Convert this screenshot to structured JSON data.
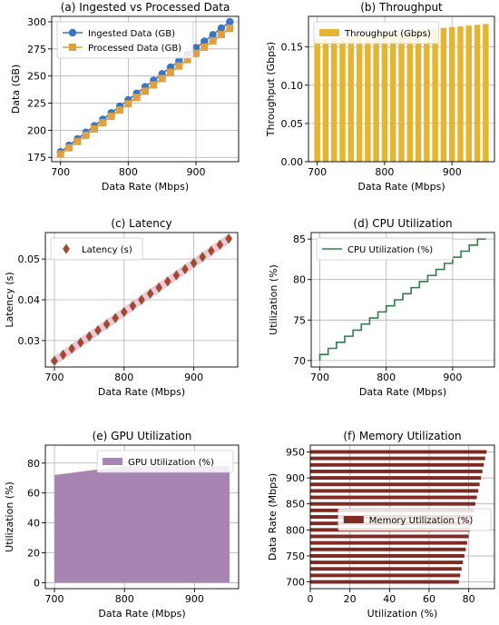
{
  "colors": {
    "ingested": "#3a75c4",
    "processed": "#e0a040",
    "throughput": "#e5b532",
    "latency_marker": "#c0392b",
    "latency_band": "#f4b6d2",
    "cpu_line": "#2e7d46",
    "gpu_fill": "#a884b3",
    "memory_bar": "#7f2a22"
  },
  "chart_data": [
    {
      "id": "a",
      "type": "line",
      "title": "(a) Ingested vs Processed Data",
      "xlabel": "Data Rate (Mbps)",
      "ylabel": "Data (GB)",
      "xlim": [
        687,
        963
      ],
      "ylim": [
        171,
        305
      ],
      "xticks": [
        700,
        800,
        900
      ],
      "yticks": [
        175,
        200,
        225,
        250,
        275,
        300
      ],
      "grid": true,
      "legend": "upper left",
      "x": [
        700,
        712.5,
        725,
        737.5,
        750,
        762.5,
        775,
        787.5,
        800,
        812.5,
        825,
        837.5,
        850,
        862.5,
        875,
        887.5,
        900,
        912.5,
        925,
        937.5,
        950
      ],
      "series": [
        {
          "name": "Ingested Data (GB)",
          "marker": "circle",
          "color_key": "ingested",
          "values": [
            180,
            186,
            192,
            198,
            204,
            210,
            216,
            222,
            228,
            234,
            240,
            246,
            252,
            258,
            264,
            270,
            276,
            282,
            288,
            294,
            300
          ]
        },
        {
          "name": "Processed Data (GB)",
          "marker": "square",
          "color_key": "processed",
          "values": [
            178,
            183.8,
            189.6,
            195.4,
            201.2,
            207,
            212.8,
            218.6,
            224.4,
            230.2,
            236,
            241.8,
            247.6,
            253.4,
            259.2,
            265,
            270.8,
            276.6,
            282.4,
            288.2,
            294
          ]
        }
      ]
    },
    {
      "id": "b",
      "type": "bar",
      "title": "(b) Throughput",
      "xlabel": "Data Rate (Mbps)",
      "ylabel": "Throughput (Gbps)",
      "xlim": [
        687,
        963
      ],
      "ylim": [
        0,
        0.19
      ],
      "xticks": [
        700,
        800,
        900
      ],
      "yticks": [
        0.0,
        0.05,
        0.1,
        0.15
      ],
      "ytick_format": 2,
      "grid": true,
      "legend": "upper left",
      "x": [
        700,
        712.5,
        725,
        737.5,
        750,
        762.5,
        775,
        787.5,
        800,
        812.5,
        825,
        837.5,
        850,
        862.5,
        875,
        887.5,
        900,
        912.5,
        925,
        937.5,
        950
      ],
      "series": [
        {
          "name": "Throughput (Gbps)",
          "color_key": "throughput",
          "values": [
            0.16,
            0.161,
            0.162,
            0.163,
            0.164,
            0.165,
            0.166,
            0.167,
            0.168,
            0.169,
            0.17,
            0.171,
            0.172,
            0.173,
            0.174,
            0.175,
            0.176,
            0.177,
            0.178,
            0.179,
            0.18
          ]
        }
      ]
    },
    {
      "id": "c",
      "type": "scatter",
      "title": "(c) Latency",
      "xlabel": "Data Rate (Mbps)",
      "ylabel": "Latency (s)",
      "xlim": [
        687,
        963
      ],
      "ylim": [
        0.0235,
        0.0565
      ],
      "xticks": [
        700,
        800,
        900
      ],
      "yticks": [
        0.03,
        0.04,
        0.05
      ],
      "ytick_format": 2,
      "grid": true,
      "legend": "upper left",
      "x": [
        700,
        712.5,
        725,
        737.5,
        750,
        762.5,
        775,
        787.5,
        800,
        812.5,
        825,
        837.5,
        850,
        862.5,
        875,
        887.5,
        900,
        912.5,
        925,
        937.5,
        950
      ],
      "series": [
        {
          "name": "Latency (s)",
          "marker": "diamond",
          "color_key": "latency_marker",
          "values": [
            0.025,
            0.0265,
            0.028,
            0.0295,
            0.031,
            0.0325,
            0.034,
            0.0355,
            0.037,
            0.0385,
            0.04,
            0.0415,
            0.043,
            0.0445,
            0.046,
            0.0475,
            0.049,
            0.0505,
            0.052,
            0.0535,
            0.055
          ]
        }
      ]
    },
    {
      "id": "d",
      "type": "line",
      "title": "(d) CPU Utilization",
      "xlabel": "Data Rate (Mbps)",
      "ylabel": "Utilization (%)",
      "xlim": [
        687,
        963
      ],
      "ylim": [
        69.2,
        85.8
      ],
      "xticks": [
        700,
        800,
        900
      ],
      "yticks": [
        70,
        75,
        80,
        85
      ],
      "grid": true,
      "legend": "upper left",
      "step": "pre",
      "x": [
        700,
        712.5,
        725,
        737.5,
        750,
        762.5,
        775,
        787.5,
        800,
        812.5,
        825,
        837.5,
        850,
        862.5,
        875,
        887.5,
        900,
        912.5,
        925,
        937.5,
        950
      ],
      "series": [
        {
          "name": "CPU Utilization (%)",
          "color_key": "cpu_line",
          "values": [
            70,
            70.75,
            71.5,
            72.25,
            73,
            73.75,
            74.5,
            75.25,
            76,
            76.75,
            77.5,
            78.25,
            79,
            79.75,
            80.5,
            81.25,
            82,
            82.75,
            83.5,
            84.25,
            85
          ]
        }
      ]
    },
    {
      "id": "e",
      "type": "area",
      "title": "(e) GPU Utilization",
      "xlabel": "Data Rate (Mbps)",
      "ylabel": "Utilization (%)",
      "xlim": [
        687,
        963
      ],
      "ylim": [
        -4,
        92
      ],
      "xticks": [
        700,
        800,
        900
      ],
      "yticks": [
        0,
        20,
        40,
        60,
        80
      ],
      "grid": true,
      "legend": "upper right",
      "x": [
        700,
        800,
        950
      ],
      "series": [
        {
          "name": "GPU Utilization (%)",
          "color_key": "gpu_fill",
          "values": [
            72,
            78,
            78
          ]
        }
      ]
    },
    {
      "id": "f",
      "type": "bar",
      "orientation": "horizontal",
      "title": "(f) Memory Utilization",
      "xlabel": "Utilization (%)",
      "ylabel": "Data Rate (Mbps)",
      "xlim": [
        0,
        93
      ],
      "ylim": [
        687,
        963
      ],
      "xticks": [
        0,
        20,
        40,
        60,
        80
      ],
      "yticks": [
        700,
        750,
        800,
        850,
        900,
        950
      ],
      "grid": true,
      "legend": "center right",
      "x": [
        700,
        712.5,
        725,
        737.5,
        750,
        762.5,
        775,
        787.5,
        800,
        812.5,
        825,
        837.5,
        850,
        862.5,
        875,
        887.5,
        900,
        912.5,
        925,
        937.5,
        950
      ],
      "series": [
        {
          "name": "Memory Utilization (%)",
          "color_key": "memory_bar",
          "values": [
            75,
            75.7,
            76.4,
            77.1,
            77.8,
            78.5,
            79.2,
            79.9,
            80.6,
            81.3,
            82,
            82.7,
            83.4,
            84.1,
            84.8,
            85.5,
            86.2,
            86.9,
            87.6,
            88.3,
            89
          ]
        }
      ]
    }
  ]
}
